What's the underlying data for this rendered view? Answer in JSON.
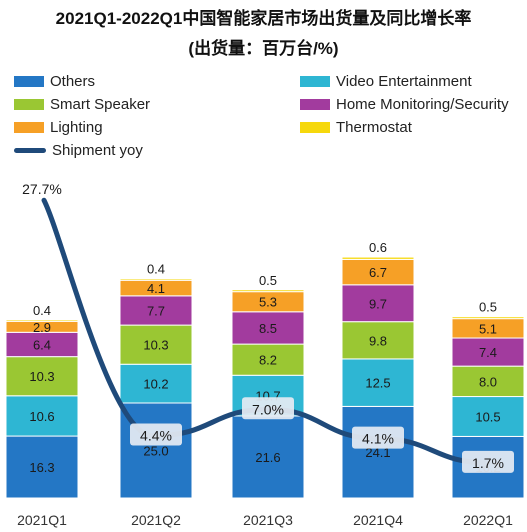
{
  "title_line1": "2021Q1-2022Q1中国智能家居市场出货量及同比增长率",
  "title_line2": "(出货量：百万台/%)",
  "legend": [
    {
      "label": "Others",
      "color": "#2477c5"
    },
    {
      "label": "Video Entertainment",
      "color": "#2eb6d3"
    },
    {
      "label": "Smart Speaker",
      "color": "#9ac733"
    },
    {
      "label": "Home Monitoring/Security",
      "color": "#a23b9e"
    },
    {
      "label": "Lighting",
      "color": "#f6a026"
    },
    {
      "label": "Thermostat",
      "color": "#f6d80c"
    },
    {
      "label": "Shipment yoy",
      "color": "#1f4a7a"
    }
  ],
  "chart_data": {
    "type": "bar",
    "stacked": true,
    "categories": [
      "2021Q1",
      "2021Q2",
      "2021Q3",
      "2021Q4",
      "2022Q1"
    ],
    "series": [
      {
        "name": "Others",
        "values": [
          16.3,
          25.0,
          21.6,
          24.1,
          16.2
        ]
      },
      {
        "name": "Video Entertainment",
        "values": [
          10.6,
          10.2,
          10.7,
          12.5,
          10.5
        ]
      },
      {
        "name": "Smart Speaker",
        "values": [
          10.3,
          10.3,
          8.2,
          9.8,
          8.0
        ]
      },
      {
        "name": "Home Monitoring/Security",
        "values": [
          6.4,
          7.7,
          8.5,
          9.7,
          7.4
        ]
      },
      {
        "name": "Lighting",
        "values": [
          2.9,
          4.1,
          5.3,
          6.7,
          5.1
        ]
      },
      {
        "name": "Thermostat",
        "values": [
          0.4,
          0.4,
          0.5,
          0.6,
          0.5
        ]
      }
    ],
    "line_series": {
      "name": "Shipment yoy",
      "values": [
        27.7,
        4.4,
        7.0,
        4.1,
        1.7
      ],
      "labels": [
        "27.7%",
        "4.4%",
        "7.0%",
        "4.1%",
        "1.7%"
      ]
    },
    "grid": false
  }
}
